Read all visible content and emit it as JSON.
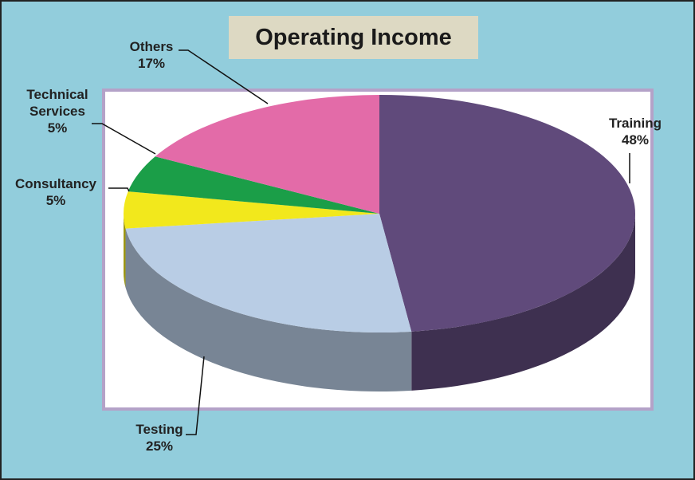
{
  "chart_data": {
    "type": "pie",
    "title": "Operating Income",
    "categories": [
      "Training",
      "Testing",
      "Consultancy",
      "Technical Services",
      "Others"
    ],
    "values": [
      48,
      25,
      5,
      5,
      17
    ],
    "value_labels": [
      "48%",
      "25%",
      "5%",
      "5%",
      "17%"
    ],
    "colors": [
      "#604a7b",
      "#b9cde5",
      "#f2e81c",
      "#1b9e48",
      "#e36ba8"
    ]
  }
}
